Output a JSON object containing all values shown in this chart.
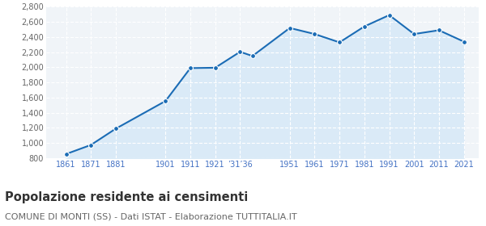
{
  "years": [
    1861,
    1871,
    1881,
    1901,
    1911,
    1921,
    1931,
    1936,
    1951,
    1961,
    1971,
    1981,
    1991,
    2001,
    2011,
    2021
  ],
  "population": [
    855,
    975,
    1190,
    1555,
    1990,
    1995,
    2205,
    2150,
    2520,
    2440,
    2330,
    2540,
    2690,
    2440,
    2490,
    2340
  ],
  "ylim": [
    800,
    2800
  ],
  "yticks": [
    800,
    1000,
    1200,
    1400,
    1600,
    1800,
    2000,
    2200,
    2400,
    2600,
    2800
  ],
  "x_positions": [
    1861,
    1871,
    1881,
    1901,
    1911,
    1921,
    1931,
    1951,
    1961,
    1971,
    1981,
    1991,
    2001,
    2011,
    2021
  ],
  "x_labels": [
    "1861",
    "1871",
    "1881",
    "1901",
    "1911",
    "1921",
    "’31’36",
    "1951",
    "1961",
    "1971",
    "1981",
    "1991",
    "2001",
    "2011",
    "2021"
  ],
  "xlim_left": 1853,
  "xlim_right": 2027,
  "line_color": "#1b6cb5",
  "fill_color": "#daeaf7",
  "marker_color": "#1b6cb5",
  "bg_color": "#ffffff",
  "plot_bg_color": "#f0f4f8",
  "grid_color": "#ffffff",
  "tick_color_x": "#4472c4",
  "tick_color_y": "#666666",
  "title": "Popolazione residente ai censimenti",
  "subtitle": "COMUNE DI MONTI (SS) - Dati ISTAT - Elaborazione TUTTITALIA.IT",
  "title_fontsize": 10.5,
  "subtitle_fontsize": 8,
  "tick_fontsize": 7,
  "marker_size": 18
}
